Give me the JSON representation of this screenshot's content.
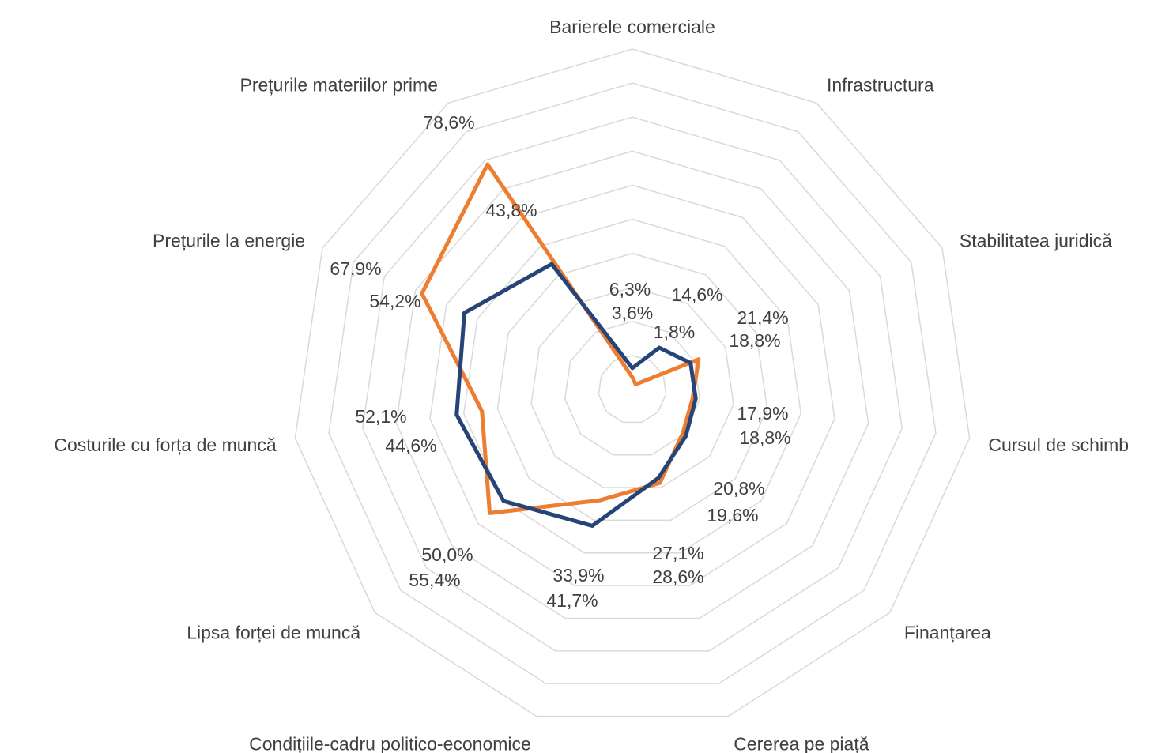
{
  "chart_data": {
    "type": "radar",
    "categories": [
      "Barierele comerciale",
      "Infrastructura",
      "Stabilitatea juridică",
      "Cursul de schimb",
      "Finanțarea",
      "Cererea pe piață",
      "Condițiile-cadru politico-economice",
      "Lipsa forței de muncă",
      "Costurile cu forța de muncă",
      "Prețurile la energie",
      "Prețurile materiilor prime"
    ],
    "series": [
      {
        "color": "#ed7d31",
        "values": [
          3.6,
          1.8,
          21.4,
          17.9,
          19.6,
          28.6,
          33.9,
          55.4,
          44.6,
          67.9,
          78.6
        ],
        "value_labels": [
          "3,6%",
          "1,8%",
          "21,4%",
          "17,9%",
          "19,6%",
          "28,6%",
          "33,9%",
          "55,4%",
          "44,6%",
          "67,9%",
          "78,6%"
        ]
      },
      {
        "color": "#264478",
        "values": [
          6.3,
          14.6,
          18.8,
          18.8,
          20.8,
          27.1,
          41.7,
          50.0,
          52.1,
          54.2,
          43.8
        ],
        "value_labels": [
          "6,3%",
          "14,6%",
          "18,8%",
          "18,8%",
          "20,8%",
          "27,1%",
          "41,7%",
          "50,0%",
          "52,1%",
          "54,2%",
          "43,8%"
        ]
      }
    ],
    "ylim": [
      0,
      100
    ],
    "yticks": [
      10,
      20,
      30,
      40,
      50,
      60,
      70,
      80,
      90,
      100
    ],
    "grid": true
  }
}
